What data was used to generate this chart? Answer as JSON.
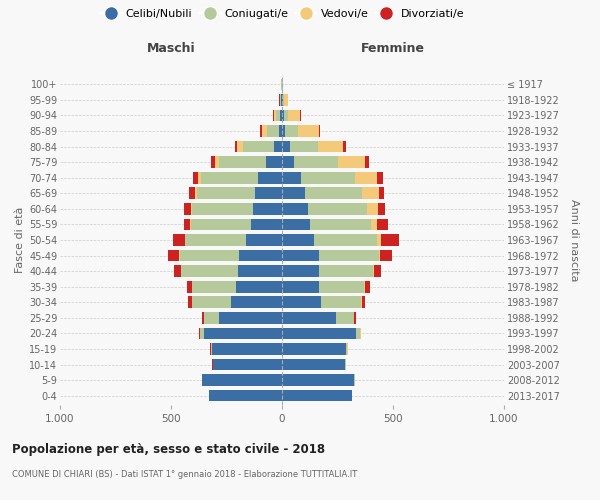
{
  "age_groups": [
    "0-4",
    "5-9",
    "10-14",
    "15-19",
    "20-24",
    "25-29",
    "30-34",
    "35-39",
    "40-44",
    "45-49",
    "50-54",
    "55-59",
    "60-64",
    "65-69",
    "70-74",
    "75-79",
    "80-84",
    "85-89",
    "90-94",
    "95-99",
    "100+"
  ],
  "birth_years": [
    "2013-2017",
    "2008-2012",
    "2003-2007",
    "1998-2002",
    "1993-1997",
    "1988-1992",
    "1983-1987",
    "1978-1982",
    "1973-1977",
    "1968-1972",
    "1963-1967",
    "1958-1962",
    "1953-1957",
    "1948-1952",
    "1943-1947",
    "1938-1942",
    "1933-1937",
    "1928-1932",
    "1923-1927",
    "1918-1922",
    "≤ 1917"
  ],
  "maschi": {
    "celibi": [
      330,
      360,
      310,
      315,
      350,
      285,
      230,
      205,
      200,
      195,
      160,
      140,
      130,
      120,
      110,
      70,
      35,
      12,
      8,
      3,
      2
    ],
    "coniugati": [
      1,
      2,
      3,
      5,
      18,
      65,
      175,
      200,
      255,
      265,
      275,
      270,
      275,
      265,
      255,
      215,
      140,
      55,
      18,
      4,
      1
    ],
    "vedovi": [
      0,
      0,
      0,
      1,
      2,
      2,
      1,
      2,
      2,
      3,
      4,
      5,
      5,
      8,
      12,
      18,
      28,
      22,
      12,
      4,
      0
    ],
    "divorziati": [
      0,
      0,
      1,
      2,
      4,
      8,
      18,
      22,
      28,
      52,
      52,
      28,
      32,
      28,
      22,
      18,
      10,
      8,
      3,
      2,
      0
    ]
  },
  "femmine": {
    "nubili": [
      315,
      325,
      285,
      290,
      335,
      245,
      175,
      165,
      165,
      165,
      145,
      125,
      115,
      105,
      85,
      55,
      35,
      15,
      8,
      3,
      2
    ],
    "coniugate": [
      1,
      2,
      3,
      5,
      18,
      78,
      182,
      205,
      245,
      270,
      285,
      275,
      270,
      255,
      245,
      195,
      125,
      55,
      18,
      4,
      1
    ],
    "vedove": [
      0,
      0,
      0,
      1,
      2,
      2,
      2,
      3,
      5,
      8,
      18,
      28,
      48,
      78,
      98,
      125,
      115,
      95,
      55,
      18,
      0
    ],
    "divorziate": [
      0,
      0,
      1,
      1,
      3,
      8,
      13,
      22,
      32,
      52,
      78,
      48,
      32,
      22,
      28,
      18,
      14,
      8,
      3,
      2,
      0
    ]
  },
  "colors": {
    "celibi": "#3a6ea5",
    "coniugati": "#b5c99a",
    "vedovi": "#f5c97a",
    "divorziati": "#cc2222"
  },
  "xlim": 1000,
  "title": "Popolazione per età, sesso e stato civile - 2018",
  "subtitle": "COMUNE DI CHIARI (BS) - Dati ISTAT 1° gennaio 2018 - Elaborazione TUTTITALIA.IT",
  "ylabel": "Fasce di età",
  "right_ylabel": "Anni di nascita",
  "xlabel_left": "Maschi",
  "xlabel_right": "Femmine",
  "background_color": "#f8f8f8",
  "legend_labels": [
    "Celibi/Nubili",
    "Coniugati/e",
    "Vedovi/e",
    "Divorziati/e"
  ]
}
